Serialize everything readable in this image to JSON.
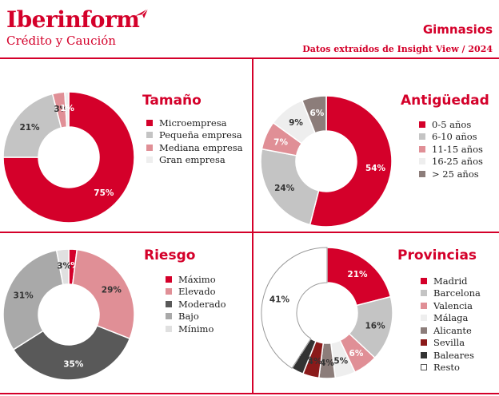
{
  "header": {
    "brand_name": "Iberinform",
    "brand_sub": "Crédito y Caución",
    "title": "Gimnasios",
    "subtitle": "Datos extraídos de Insight View / 2024"
  },
  "colors": {
    "brand": "#d4002a"
  },
  "chart_data": [
    {
      "type": "pie",
      "title": "Tamaño",
      "categories": [
        "Microempresa",
        "Pequeña empresa",
        "Mediana empresa",
        "Gran empresa"
      ],
      "values": [
        75,
        21,
        3,
        1
      ],
      "labels": [
        "75%",
        "21%",
        "3%",
        "1%"
      ],
      "colors": [
        "#d4002a",
        "#c4c4c4",
        "#e08f96",
        "#eeeeee"
      ],
      "label_colors": [
        "#ffffff",
        "#333333",
        "#333333",
        "#ffffff"
      ],
      "legend": "right"
    },
    {
      "type": "pie",
      "title": "Antigüedad",
      "categories": [
        "0-5 años",
        "6-10 años",
        "11-15 años",
        "16-25 años",
        "> 25 años"
      ],
      "values": [
        54,
        24,
        7,
        9,
        6
      ],
      "labels": [
        "54%",
        "24%",
        "7%",
        "9%",
        "6%"
      ],
      "colors": [
        "#d4002a",
        "#c4c4c4",
        "#e08f96",
        "#eeeeee",
        "#8c7d7a"
      ],
      "label_colors": [
        "#ffffff",
        "#333333",
        "#ffffff",
        "#333333",
        "#ffffff"
      ],
      "legend": "right"
    },
    {
      "type": "pie",
      "title": "Riesgo",
      "categories": [
        "Máximo",
        "Elevado",
        "Moderado",
        "Bajo",
        "Mínimo"
      ],
      "values": [
        2,
        29,
        35,
        31,
        3
      ],
      "labels": [
        "2%",
        "29%",
        "35%",
        "31%",
        "3%"
      ],
      "colors": [
        "#d4002a",
        "#e08f96",
        "#595959",
        "#a9a9a9",
        "#e0e0e0"
      ],
      "label_colors": [
        "#ffffff",
        "#333333",
        "#ffffff",
        "#333333",
        "#333333"
      ],
      "legend": "right"
    },
    {
      "type": "pie",
      "title": "Provincias",
      "categories": [
        "Madrid",
        "Barcelona",
        "Valencia",
        "Málaga",
        "Alicante",
        "Sevilla",
        "Baleares",
        "Resto"
      ],
      "values": [
        21,
        16,
        6,
        5,
        4,
        4,
        3,
        41
      ],
      "labels": [
        "21%",
        "16%",
        "6%",
        "5%",
        "4%",
        "4%",
        "3%",
        "41%"
      ],
      "colors": [
        "#d4002a",
        "#c4c4c4",
        "#e08f96",
        "#eeeeee",
        "#8c7d7a",
        "#8b1a1a",
        "#333333",
        "#ffffff"
      ],
      "label_colors": [
        "#ffffff",
        "#333333",
        "#ffffff",
        "#333333",
        "#333333",
        "#333333",
        "#333333",
        "#333333"
      ],
      "legend": "right"
    }
  ]
}
